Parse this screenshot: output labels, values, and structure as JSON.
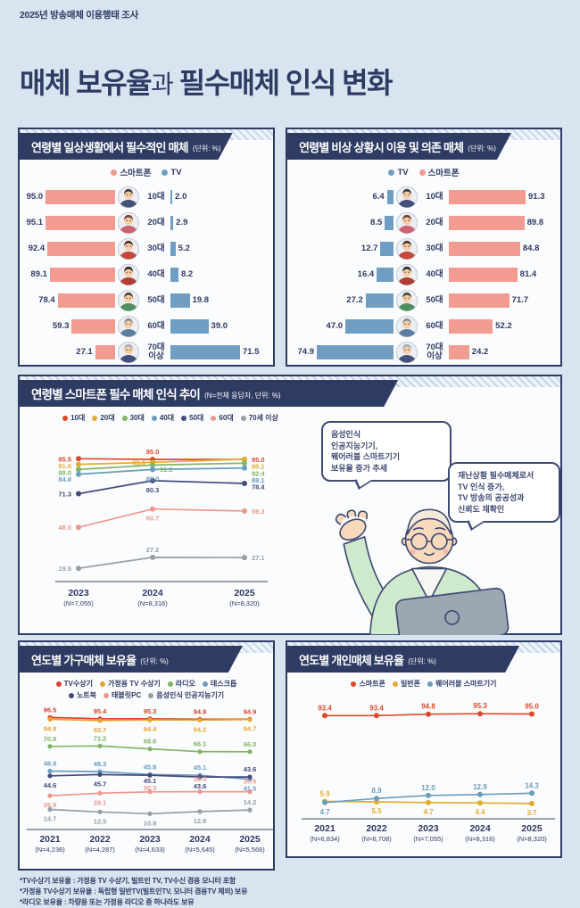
{
  "page": {
    "eyebrow": "2025년 방송매체 이용행태 조사",
    "title_strong1": "매체 보유율",
    "title_light": "과",
    "title_strong2": " 필수매체 인식 변화"
  },
  "colors": {
    "background": "#d8e5f1",
    "navy": "#2e3b63",
    "smartphone_bar": "#f29b90",
    "tv_bar": "#6f9ec2",
    "panel_bg": "#fbfcfe"
  },
  "avatars": [
    {
      "hair": "#3b3b45",
      "shirt": "#44517a"
    },
    {
      "hair": "#6b4437",
      "shirt": "#cf6272"
    },
    {
      "hair": "#4e342b",
      "shirt": "#c2483a"
    },
    {
      "hair": "#2f2b29",
      "shirt": "#b23d33"
    },
    {
      "hair": "#4a423c",
      "shirt": "#4f8f5f"
    },
    {
      "hair": "#8d9095",
      "shirt": "#5b7da0"
    },
    {
      "hair": "#abaeb4",
      "shirt": "#44517a"
    }
  ],
  "chart_data": [
    {
      "id": "daily_essential_media",
      "type": "bar",
      "title": "연령별 일상생활에서 필수적인 매체",
      "unit": "(단위: %)",
      "categories": [
        "10대",
        "20대",
        "30대",
        "40대",
        "50대",
        "60대",
        "70대\n이상"
      ],
      "series": [
        {
          "name": "스마트폰",
          "color": "#f29b90",
          "side": "left",
          "values": [
            95.0,
            95.1,
            92.4,
            89.1,
            78.4,
            59.3,
            27.1
          ]
        },
        {
          "name": "TV",
          "color": "#6f9ec2",
          "side": "right",
          "values": [
            2.0,
            2.9,
            5.2,
            8.2,
            19.8,
            39.0,
            71.5
          ]
        }
      ]
    },
    {
      "id": "emergency_media",
      "type": "bar",
      "title": "연령별 비상 상황시 이용 및 의존 매체",
      "unit": "(단위: %)",
      "categories": [
        "10대",
        "20대",
        "30대",
        "40대",
        "50대",
        "60대",
        "70대\n이상"
      ],
      "series": [
        {
          "name": "TV",
          "color": "#6f9ec2",
          "side": "left",
          "values": [
            6.4,
            8.5,
            12.7,
            16.4,
            27.2,
            47.0,
            74.9
          ]
        },
        {
          "name": "스마트폰",
          "color": "#f29b90",
          "side": "right",
          "values": [
            91.3,
            89.8,
            84.8,
            81.4,
            71.7,
            52.2,
            24.2
          ]
        }
      ]
    },
    {
      "id": "smartphone_essential_trend",
      "type": "line",
      "title": "연령별 스마트폰 필수 매체 인식 추이",
      "unit": "(N=전체 응답자, 단위: %)",
      "categories": [
        "2023",
        "2024",
        "2025"
      ],
      "n_labels": [
        "(N=7,055)",
        "(N=8,316)",
        "(N=8,320)"
      ],
      "ylim": [
        0,
        100
      ],
      "series": [
        {
          "name": "10대",
          "color": "#dd4a2b",
          "values": [
            95.5,
            95.0,
            95.0
          ]
        },
        {
          "name": "20대",
          "color": "#e2ad2e",
          "values": [
            91.6,
            93.0,
            95.1
          ]
        },
        {
          "name": "30대",
          "color": "#83b465",
          "values": [
            88.0,
            91.1,
            92.4
          ]
        },
        {
          "name": "40대",
          "color": "#689cc0",
          "values": [
            84.8,
            88.0,
            89.1
          ]
        },
        {
          "name": "50대",
          "color": "#424a7d",
          "values": [
            71.3,
            80.3,
            78.4
          ]
        },
        {
          "name": "60대",
          "color": "#ef978c",
          "values": [
            48.0,
            60.7,
            59.3
          ]
        },
        {
          "name": "70세 이상",
          "color": "#979ea6",
          "values": [
            19.6,
            27.2,
            27.1
          ]
        }
      ]
    },
    {
      "id": "household_media_ownership",
      "type": "line",
      "title": "연도별 가구매체 보유율",
      "unit": "(단위: %)",
      "categories": [
        "2021",
        "2022",
        "2023",
        "2024",
        "2025"
      ],
      "n_labels": [
        "(N=4,236)",
        "(N=4,287)",
        "(N=4,633)",
        "(N=5,645)",
        "(N=5,566)"
      ],
      "ylim": [
        0,
        100
      ],
      "series": [
        {
          "name": "TV수상기",
          "color": "#d8432a",
          "values": [
            96.5,
            95.4,
            95.3,
            94.9,
            94.9
          ]
        },
        {
          "name": "가정용 TV 수상기",
          "color": "#e8a52f",
          "values": [
            94.9,
            93.7,
            94.4,
            94.2,
            94.7
          ]
        },
        {
          "name": "라디오",
          "color": "#83b465",
          "values": [
            70.8,
            71.2,
            68.6,
            66.1,
            66.0
          ]
        },
        {
          "name": "데스크톱",
          "color": "#689cc0",
          "values": [
            48.8,
            48.3,
            45.8,
            45.1,
            41.5
          ]
        },
        {
          "name": "노트북",
          "color": "#424a7d",
          "values": [
            44.6,
            45.7,
            45.1,
            43.6,
            43.6
          ]
        },
        {
          "name": "태블릿PC",
          "color": "#ef978c",
          "values": [
            26.9,
            29.1,
            30.3,
            30.5,
            30.5
          ]
        },
        {
          "name": "음성인식 인공지능기기",
          "color": "#979ea6",
          "values": [
            14.7,
            12.5,
            10.9,
            12.8,
            14.2
          ]
        }
      ]
    },
    {
      "id": "personal_media_ownership",
      "type": "line",
      "title": "연도별 개인매체 보유율",
      "unit": "(단위: %)",
      "categories": [
        "2021",
        "2022",
        "2023",
        "2024",
        "2025"
      ],
      "n_labels": [
        "(N=6,834)",
        "(N=6,708)",
        "(N=7,055)",
        "(N=8,316)",
        "(N=8,320)"
      ],
      "ylim": [
        0,
        100
      ],
      "series": [
        {
          "name": "스마트폰",
          "color": "#dd4a2b",
          "values": [
            93.4,
            93.4,
            94.8,
            95.3,
            95.0
          ]
        },
        {
          "name": "일반폰",
          "color": "#e2ad2e",
          "values": [
            5.9,
            5.5,
            4.7,
            4.4,
            3.7
          ]
        },
        {
          "name": "웨어러블 스마트기기",
          "color": "#6a9cba",
          "values": [
            4.7,
            8.9,
            12.0,
            12.9,
            14.3
          ]
        }
      ]
    }
  ],
  "annotations": {
    "bubble_left": "음성인식\n인공지능기기,\n웨어러블 스마트기기\n보유율 증가 추세",
    "bubble_right": "재난상황 필수매체로서\nTV 인식 증가,\nTV 방송의 공공성과\n신뢰도 재확인"
  },
  "footnotes": [
    "*TV수상기 보유율 : 가정용 TV 수상기, 빌트인 TV, TV수신 겸용 모니터 포함",
    "*가정용 TV수상기 보유율 : 독립형 일반TV(빌트인TV, 모니터 겸용TV 제외) 보유",
    "*라디오 보유율 : 차량용 또는 가정용 라디오 중 하나라도 보유"
  ]
}
